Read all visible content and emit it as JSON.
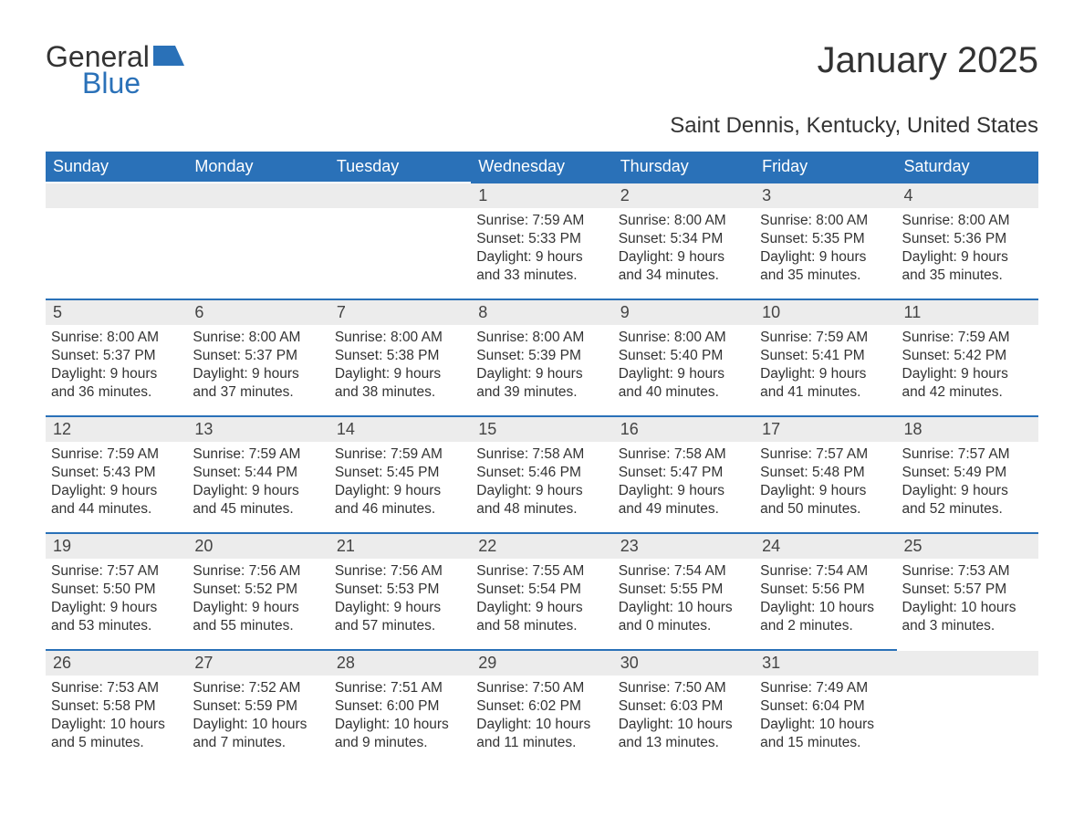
{
  "logo": {
    "part1": "General",
    "part2": "Blue"
  },
  "title": "January 2025",
  "subtitle": "Saint Dennis, Kentucky, United States",
  "colors": {
    "header_bg": "#2a71b8",
    "header_text": "#ffffff",
    "daynum_bg": "#ececec",
    "daynum_border": "#2a71b8",
    "body_text": "#333333",
    "page_bg": "#ffffff"
  },
  "week_days": [
    "Sunday",
    "Monday",
    "Tuesday",
    "Wednesday",
    "Thursday",
    "Friday",
    "Saturday"
  ],
  "weeks": [
    [
      null,
      null,
      null,
      {
        "n": "1",
        "sunrise": "7:59 AM",
        "sunset": "5:33 PM",
        "dl": "9 hours and 33 minutes."
      },
      {
        "n": "2",
        "sunrise": "8:00 AM",
        "sunset": "5:34 PM",
        "dl": "9 hours and 34 minutes."
      },
      {
        "n": "3",
        "sunrise": "8:00 AM",
        "sunset": "5:35 PM",
        "dl": "9 hours and 35 minutes."
      },
      {
        "n": "4",
        "sunrise": "8:00 AM",
        "sunset": "5:36 PM",
        "dl": "9 hours and 35 minutes."
      }
    ],
    [
      {
        "n": "5",
        "sunrise": "8:00 AM",
        "sunset": "5:37 PM",
        "dl": "9 hours and 36 minutes."
      },
      {
        "n": "6",
        "sunrise": "8:00 AM",
        "sunset": "5:37 PM",
        "dl": "9 hours and 37 minutes."
      },
      {
        "n": "7",
        "sunrise": "8:00 AM",
        "sunset": "5:38 PM",
        "dl": "9 hours and 38 minutes."
      },
      {
        "n": "8",
        "sunrise": "8:00 AM",
        "sunset": "5:39 PM",
        "dl": "9 hours and 39 minutes."
      },
      {
        "n": "9",
        "sunrise": "8:00 AM",
        "sunset": "5:40 PM",
        "dl": "9 hours and 40 minutes."
      },
      {
        "n": "10",
        "sunrise": "7:59 AM",
        "sunset": "5:41 PM",
        "dl": "9 hours and 41 minutes."
      },
      {
        "n": "11",
        "sunrise": "7:59 AM",
        "sunset": "5:42 PM",
        "dl": "9 hours and 42 minutes."
      }
    ],
    [
      {
        "n": "12",
        "sunrise": "7:59 AM",
        "sunset": "5:43 PM",
        "dl": "9 hours and 44 minutes."
      },
      {
        "n": "13",
        "sunrise": "7:59 AM",
        "sunset": "5:44 PM",
        "dl": "9 hours and 45 minutes."
      },
      {
        "n": "14",
        "sunrise": "7:59 AM",
        "sunset": "5:45 PM",
        "dl": "9 hours and 46 minutes."
      },
      {
        "n": "15",
        "sunrise": "7:58 AM",
        "sunset": "5:46 PM",
        "dl": "9 hours and 48 minutes."
      },
      {
        "n": "16",
        "sunrise": "7:58 AM",
        "sunset": "5:47 PM",
        "dl": "9 hours and 49 minutes."
      },
      {
        "n": "17",
        "sunrise": "7:57 AM",
        "sunset": "5:48 PM",
        "dl": "9 hours and 50 minutes."
      },
      {
        "n": "18",
        "sunrise": "7:57 AM",
        "sunset": "5:49 PM",
        "dl": "9 hours and 52 minutes."
      }
    ],
    [
      {
        "n": "19",
        "sunrise": "7:57 AM",
        "sunset": "5:50 PM",
        "dl": "9 hours and 53 minutes."
      },
      {
        "n": "20",
        "sunrise": "7:56 AM",
        "sunset": "5:52 PM",
        "dl": "9 hours and 55 minutes."
      },
      {
        "n": "21",
        "sunrise": "7:56 AM",
        "sunset": "5:53 PM",
        "dl": "9 hours and 57 minutes."
      },
      {
        "n": "22",
        "sunrise": "7:55 AM",
        "sunset": "5:54 PM",
        "dl": "9 hours and 58 minutes."
      },
      {
        "n": "23",
        "sunrise": "7:54 AM",
        "sunset": "5:55 PM",
        "dl": "10 hours and 0 minutes."
      },
      {
        "n": "24",
        "sunrise": "7:54 AM",
        "sunset": "5:56 PM",
        "dl": "10 hours and 2 minutes."
      },
      {
        "n": "25",
        "sunrise": "7:53 AM",
        "sunset": "5:57 PM",
        "dl": "10 hours and 3 minutes."
      }
    ],
    [
      {
        "n": "26",
        "sunrise": "7:53 AM",
        "sunset": "5:58 PM",
        "dl": "10 hours and 5 minutes."
      },
      {
        "n": "27",
        "sunrise": "7:52 AM",
        "sunset": "5:59 PM",
        "dl": "10 hours and 7 minutes."
      },
      {
        "n": "28",
        "sunrise": "7:51 AM",
        "sunset": "6:00 PM",
        "dl": "10 hours and 9 minutes."
      },
      {
        "n": "29",
        "sunrise": "7:50 AM",
        "sunset": "6:02 PM",
        "dl": "10 hours and 11 minutes."
      },
      {
        "n": "30",
        "sunrise": "7:50 AM",
        "sunset": "6:03 PM",
        "dl": "10 hours and 13 minutes."
      },
      {
        "n": "31",
        "sunrise": "7:49 AM",
        "sunset": "6:04 PM",
        "dl": "10 hours and 15 minutes."
      },
      null
    ]
  ],
  "labels": {
    "sunrise": "Sunrise:",
    "sunset": "Sunset:",
    "daylight": "Daylight:"
  }
}
